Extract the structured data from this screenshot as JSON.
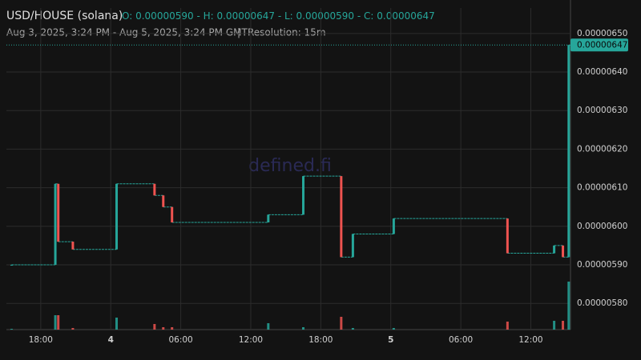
{
  "chart_data": {
    "type": "candlestick",
    "title": "USD/HOUSE (solana)",
    "ohlc": [
      {
        "label": "O",
        "value": "0.00000590"
      },
      {
        "label": "H",
        "value": "0.00000647"
      },
      {
        "label": "L",
        "value": "0.00000590"
      },
      {
        "label": "C",
        "value": "0.00000647"
      }
    ],
    "range_text": "Aug 3, 2025, 3:24 PM - Aug 5, 2025, 3:24 PM GMT",
    "resolution": "Resolution: 15m",
    "watermark": "defined.fi",
    "up_color": "#26a69a",
    "down_color": "#ef5350",
    "grid": true,
    "xlim": [
      "2025-08-03T15:24",
      "2025-08-05T15:24"
    ],
    "xticks": [
      {
        "value": "2025-08-03T18:00",
        "label": "18:00"
      },
      {
        "value": "2025-08-04T00:00",
        "label": "4"
      },
      {
        "value": "2025-08-04T06:00",
        "label": "06:00"
      },
      {
        "value": "2025-08-04T12:00",
        "label": "12:00"
      },
      {
        "value": "2025-08-04T18:00",
        "label": "18:00"
      },
      {
        "value": "2025-08-05T00:00",
        "label": "5"
      },
      {
        "value": "2025-08-05T06:00",
        "label": "06:00"
      },
      {
        "value": "2025-08-05T12:00",
        "label": "12:00"
      }
    ],
    "ylim": [
      5.732e-06,
      6.566e-06
    ],
    "yticks": [
      {
        "value": 5.8e-06,
        "label": "0.00000580"
      },
      {
        "value": 5.9e-06,
        "label": "0.00000590"
      },
      {
        "value": 6e-06,
        "label": "0.00000600"
      },
      {
        "value": 6.1e-06,
        "label": "0.00000610"
      },
      {
        "value": 6.2e-06,
        "label": "0.00000620"
      },
      {
        "value": 6.3e-06,
        "label": "0.00000630"
      },
      {
        "value": 6.4e-06,
        "label": "0.00000640"
      },
      {
        "value": 6.5e-06,
        "label": "0.00000650"
      }
    ],
    "last_price": {
      "value": 6.47e-06,
      "label": "0.00000647"
    },
    "x": [
      "2025-08-03T15:30",
      "2025-08-03T19:15",
      "2025-08-03T19:30",
      "2025-08-03T20:45",
      "2025-08-04T00:30",
      "2025-08-04T03:45",
      "2025-08-04T04:30",
      "2025-08-04T05:15",
      "2025-08-04T13:30",
      "2025-08-04T16:30",
      "2025-08-04T19:45",
      "2025-08-04T20:45",
      "2025-08-05T00:15",
      "2025-08-05T10:00",
      "2025-08-05T14:00",
      "2025-08-05T14:45",
      "2025-08-05T15:15"
    ],
    "open": [
      5.9e-06,
      5.9e-06,
      6.11e-06,
      5.96e-06,
      5.94e-06,
      6.11e-06,
      6.08e-06,
      6.05e-06,
      6.01e-06,
      6.03e-06,
      6.13e-06,
      5.92e-06,
      5.98e-06,
      6.02e-06,
      5.93e-06,
      5.95e-06,
      5.92e-06
    ],
    "high": [
      5.9e-06,
      6.11e-06,
      6.11e-06,
      5.96e-06,
      6.11e-06,
      6.11e-06,
      6.08e-06,
      6.05e-06,
      6.03e-06,
      6.13e-06,
      6.13e-06,
      5.98e-06,
      6.02e-06,
      6.02e-06,
      5.95e-06,
      5.95e-06,
      6.47e-06
    ],
    "low": [
      5.9e-06,
      5.9e-06,
      5.96e-06,
      5.94e-06,
      5.94e-06,
      6.08e-06,
      6.05e-06,
      6.01e-06,
      6.01e-06,
      6.03e-06,
      5.92e-06,
      5.92e-06,
      5.98e-06,
      5.93e-06,
      5.93e-06,
      5.92e-06,
      5.92e-06
    ],
    "close": [
      5.9e-06,
      6.11e-06,
      5.96e-06,
      5.94e-06,
      6.11e-06,
      6.08e-06,
      6.05e-06,
      6.01e-06,
      6.03e-06,
      6.13e-06,
      5.92e-06,
      5.98e-06,
      6.02e-06,
      5.93e-06,
      5.95e-06,
      5.92e-06,
      6.47e-06
    ],
    "volume": [
      1,
      18,
      18,
      2,
      15,
      7,
      3,
      3,
      8,
      3,
      16,
      2,
      2,
      10,
      11,
      11,
      60
    ]
  }
}
